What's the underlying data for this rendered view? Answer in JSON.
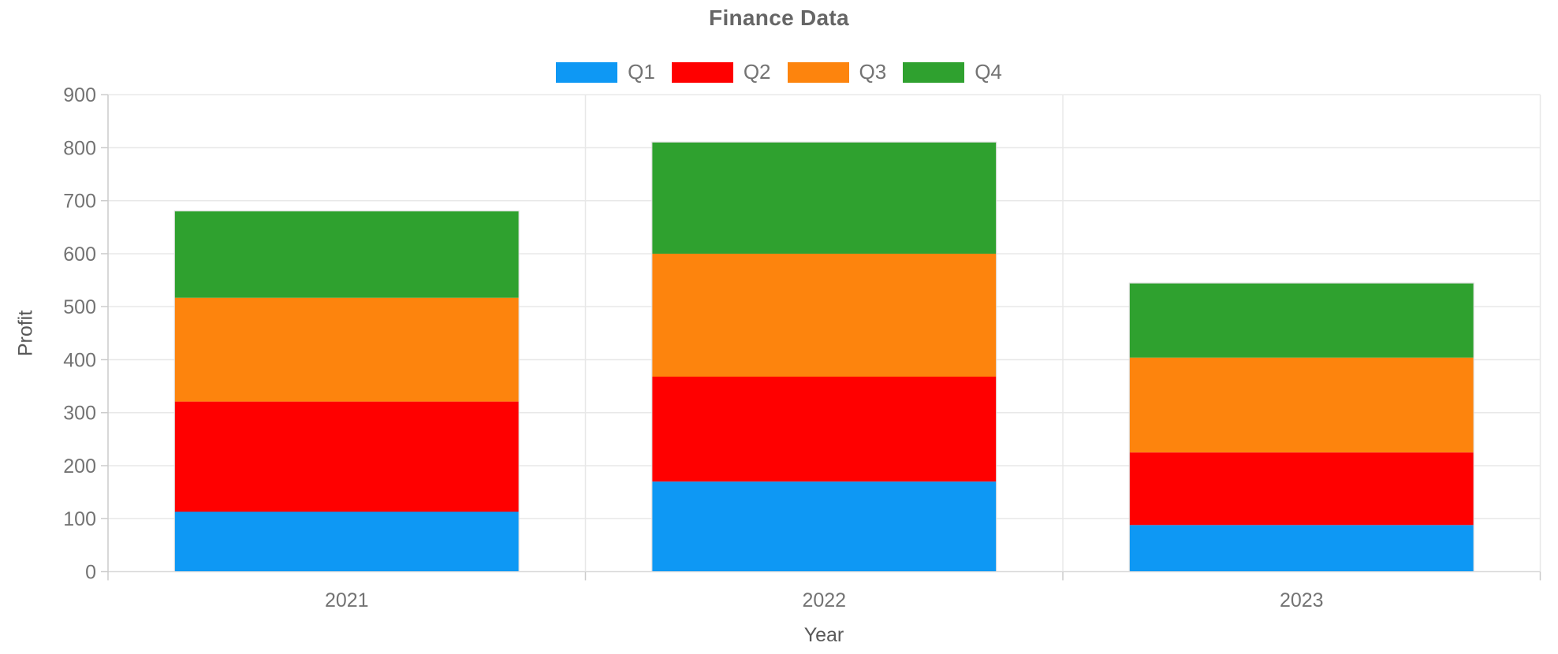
{
  "chart_data": {
    "type": "bar",
    "stacked": true,
    "title": "Finance Data",
    "xlabel": "Year",
    "ylabel": "Profit",
    "categories": [
      "2021",
      "2022",
      "2023"
    ],
    "series": [
      {
        "name": "Q1",
        "color": "#0E98F4",
        "values": [
          113,
          170,
          88
        ]
      },
      {
        "name": "Q2",
        "color": "#FF0000",
        "values": [
          208,
          198,
          137
        ]
      },
      {
        "name": "Q3",
        "color": "#FD840D",
        "values": [
          196,
          232,
          179
        ]
      },
      {
        "name": "Q4",
        "color": "#2FA12F",
        "values": [
          163,
          210,
          140
        ]
      }
    ],
    "stack_totals": [
      680,
      810,
      544
    ],
    "ylim": [
      0,
      900
    ],
    "yticks": [
      0,
      100,
      200,
      300,
      400,
      500,
      600,
      700,
      800,
      900
    ],
    "grid": true,
    "legend_position": "top",
    "theme_colors": {
      "gridline": "#E8E8E8",
      "axis_line": "#CCCCCC",
      "baseline": "#D9D9D9",
      "bar_outline": "#DCDCDC",
      "tick_label": "#737373",
      "axis_title": "#595959",
      "title": "#666666"
    }
  }
}
